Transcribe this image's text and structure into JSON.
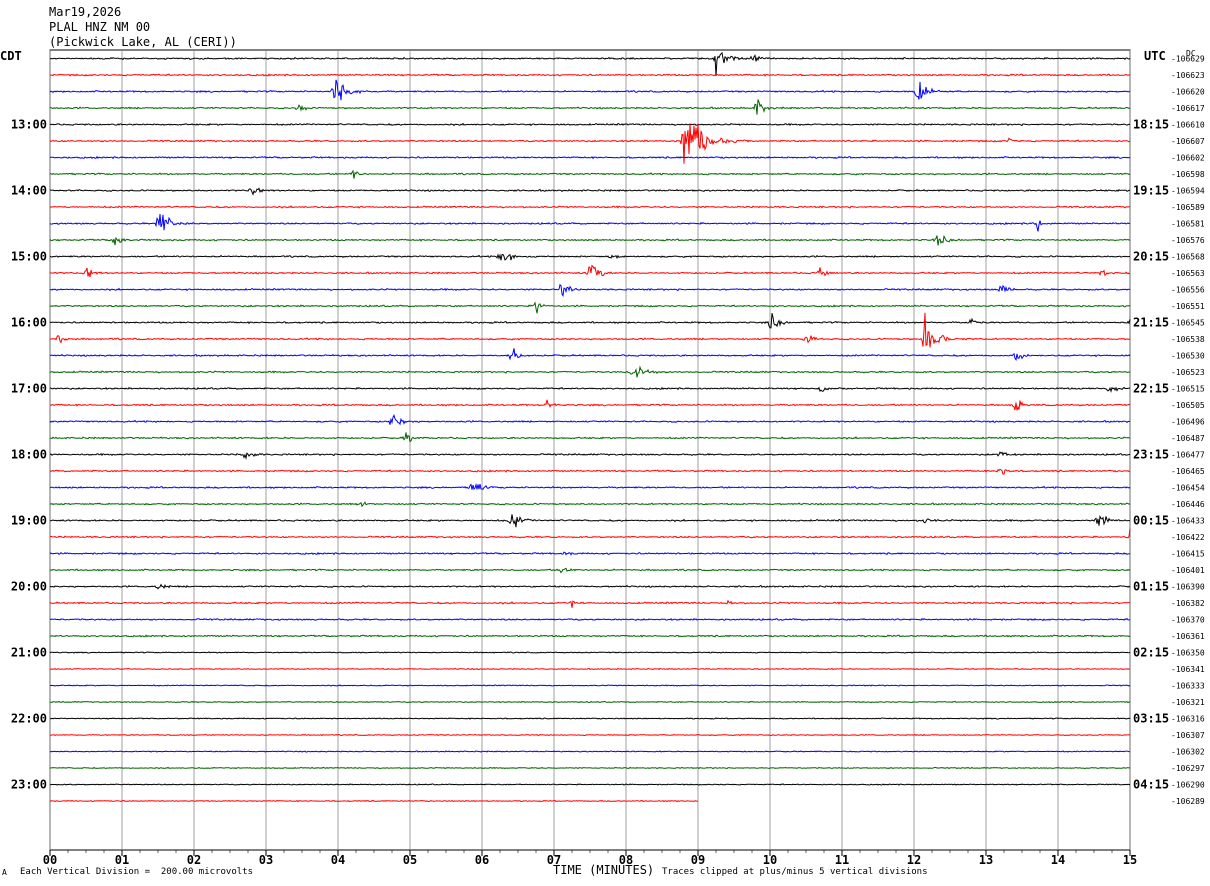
{
  "header": {
    "date": "Mar19,2026",
    "station": "PLAL HNZ NM 00",
    "location": "(Pickwick Lake, AL (CERI))"
  },
  "timezones": {
    "left": "CDT",
    "right": "UTC",
    "dc": "DC"
  },
  "footer": {
    "scale_note": "Each Vertical Division =  200.00 microvolts",
    "clip_note": "Traces clipped at plus/minus 5 vertical divisions",
    "corner_mark": "A"
  },
  "chart_data": {
    "type": "line",
    "title": "PLAL HNZ NM 00",
    "xlabel": "TIME (MINUTES)",
    "xlim": [
      0,
      15
    ],
    "x_ticks": [
      "00",
      "01",
      "02",
      "03",
      "04",
      "05",
      "06",
      "07",
      "08",
      "09",
      "10",
      "11",
      "12",
      "13",
      "14",
      "15"
    ],
    "trace_colors": [
      "#000000",
      "#ff0000",
      "#0000ff",
      "#006400"
    ],
    "left_hour_labels": [
      "13:00",
      "14:00",
      "15:00",
      "16:00",
      "17:00",
      "18:00",
      "19:00",
      "20:00",
      "21:00",
      "22:00",
      "23:00"
    ],
    "right_hour_labels": [
      "18:15",
      "19:15",
      "20:15",
      "21:15",
      "22:15",
      "23:15",
      "00:15",
      "01:15",
      "02:15",
      "03:15",
      "04:15"
    ],
    "dc_offsets": [
      "-106629",
      "-106623",
      "-106620",
      "-106617",
      "-106610",
      "-106607",
      "-106602",
      "-106598",
      "-106594",
      "-106589",
      "-106581",
      "-106576",
      "-106568",
      "-106563",
      "-106556",
      "-106551",
      "-106545",
      "-106538",
      "-106530",
      "-106523",
      "-106515",
      "-106505",
      "-106496",
      "-106487",
      "-106477",
      "-106465",
      "-106454",
      "-106446",
      "-106433",
      "-106422",
      "-106415",
      "-106401",
      "-106390",
      "-106382",
      "-106370",
      "-106361",
      "-106350",
      "-106341",
      "-106333",
      "-106321",
      "-106316",
      "-106307",
      "-106302",
      "-106297",
      "-106290",
      "-106289"
    ],
    "last_trace_end_minute": 9.0,
    "events": [
      {
        "row": 0,
        "minute": 9.25,
        "amp": 1.2
      },
      {
        "row": 0,
        "minute": 9.75,
        "amp": 0.5
      },
      {
        "row": 2,
        "minute": 3.95,
        "amp": 1.4
      },
      {
        "row": 2,
        "minute": 12.05,
        "amp": 1.0
      },
      {
        "row": 3,
        "minute": 3.45,
        "amp": 0.4
      },
      {
        "row": 3,
        "minute": 9.8,
        "amp": 0.9
      },
      {
        "row": 5,
        "minute": 8.8,
        "amp": 3.0
      },
      {
        "row": 5,
        "minute": 13.3,
        "amp": 0.3
      },
      {
        "row": 7,
        "minute": 4.2,
        "amp": 0.4
      },
      {
        "row": 8,
        "minute": 2.8,
        "amp": 0.5
      },
      {
        "row": 10,
        "minute": 1.5,
        "amp": 1.2
      },
      {
        "row": 10,
        "minute": 13.7,
        "amp": 0.6
      },
      {
        "row": 11,
        "minute": 12.3,
        "amp": 0.8
      },
      {
        "row": 11,
        "minute": 0.9,
        "amp": 0.6
      },
      {
        "row": 12,
        "minute": 6.25,
        "amp": 1.0
      },
      {
        "row": 12,
        "minute": 7.8,
        "amp": 0.3
      },
      {
        "row": 13,
        "minute": 7.5,
        "amp": 1.0
      },
      {
        "row": 13,
        "minute": 0.5,
        "amp": 0.5
      },
      {
        "row": 13,
        "minute": 10.7,
        "amp": 0.5
      },
      {
        "row": 13,
        "minute": 14.6,
        "amp": 0.4
      },
      {
        "row": 14,
        "minute": 7.1,
        "amp": 0.6
      },
      {
        "row": 14,
        "minute": 13.2,
        "amp": 0.5
      },
      {
        "row": 15,
        "minute": 6.75,
        "amp": 0.5
      },
      {
        "row": 16,
        "minute": 10.0,
        "amp": 0.8
      },
      {
        "row": 16,
        "minute": 12.75,
        "amp": 0.5
      },
      {
        "row": 16,
        "minute": 15.0,
        "amp": 0.4
      },
      {
        "row": 17,
        "minute": 12.15,
        "amp": 1.8
      },
      {
        "row": 17,
        "minute": 0.1,
        "amp": 0.5
      },
      {
        "row": 17,
        "minute": 10.5,
        "amp": 0.5
      },
      {
        "row": 18,
        "minute": 6.4,
        "amp": 0.7
      },
      {
        "row": 18,
        "minute": 13.4,
        "amp": 0.6
      },
      {
        "row": 19,
        "minute": 8.1,
        "amp": 1.0
      },
      {
        "row": 20,
        "minute": 10.7,
        "amp": 0.5
      },
      {
        "row": 20,
        "minute": 14.7,
        "amp": 0.5
      },
      {
        "row": 21,
        "minute": 6.9,
        "amp": 0.4
      },
      {
        "row": 21,
        "minute": 13.4,
        "amp": 0.6
      },
      {
        "row": 22,
        "minute": 4.75,
        "amp": 0.8
      },
      {
        "row": 23,
        "minute": 4.95,
        "amp": 0.6
      },
      {
        "row": 24,
        "minute": 2.7,
        "amp": 0.5
      },
      {
        "row": 24,
        "minute": 13.2,
        "amp": 0.4
      },
      {
        "row": 25,
        "minute": 13.2,
        "amp": 0.5
      },
      {
        "row": 26,
        "minute": 5.85,
        "amp": 0.9
      },
      {
        "row": 27,
        "minute": 4.3,
        "amp": 0.4
      },
      {
        "row": 28,
        "minute": 6.4,
        "amp": 0.9
      },
      {
        "row": 28,
        "minute": 12.15,
        "amp": 0.4
      },
      {
        "row": 28,
        "minute": 14.55,
        "amp": 0.8
      },
      {
        "row": 29,
        "minute": 15.0,
        "amp": 0.7
      },
      {
        "row": 30,
        "minute": 7.15,
        "amp": 0.3
      },
      {
        "row": 31,
        "minute": 7.1,
        "amp": 0.6
      },
      {
        "row": 32,
        "minute": 1.5,
        "amp": 0.4
      },
      {
        "row": 33,
        "minute": 7.25,
        "amp": 0.3
      },
      {
        "row": 33,
        "minute": 9.4,
        "amp": 0.3
      }
    ]
  }
}
